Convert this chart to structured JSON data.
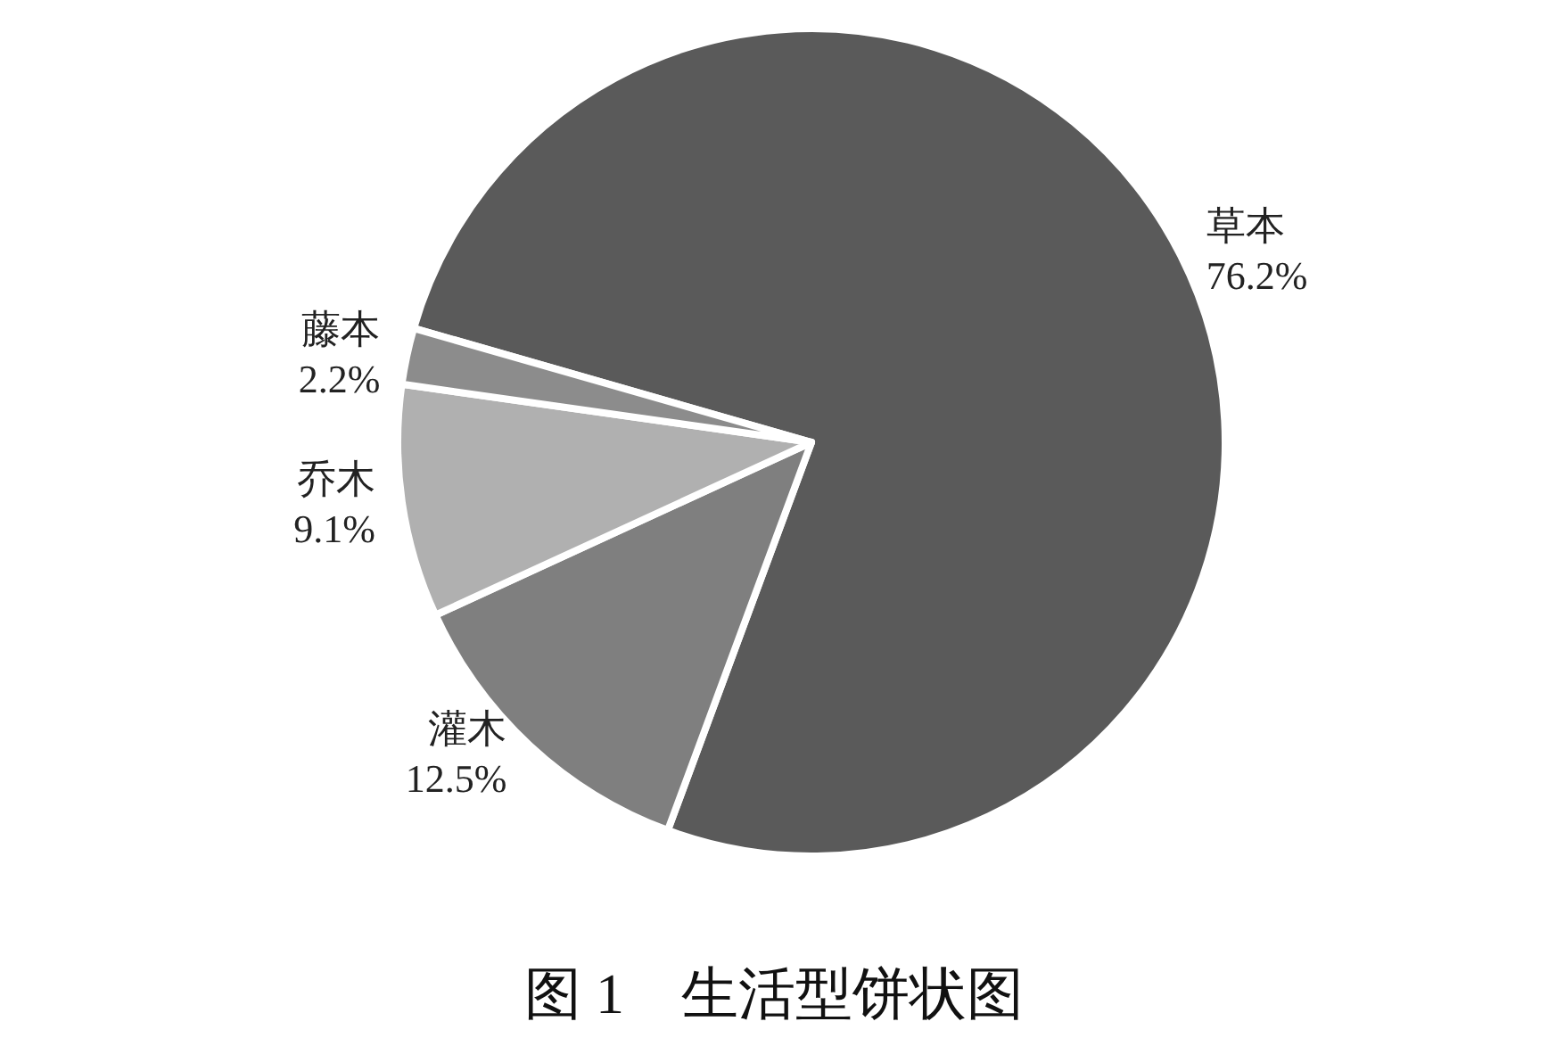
{
  "chart_data": {
    "type": "pie",
    "title": "图 1　生活型饼状图",
    "categories": [
      "草本",
      "灌木",
      "乔木",
      "藤本"
    ],
    "values": [
      76.2,
      12.5,
      9.1,
      2.2
    ],
    "value_labels": [
      "76.2%",
      "12.5%",
      "9.1%",
      "2.2%"
    ],
    "colors": [
      "#5a5a5a",
      "#7f7f7f",
      "#b0b0b0",
      "#8c8c8c"
    ]
  }
}
